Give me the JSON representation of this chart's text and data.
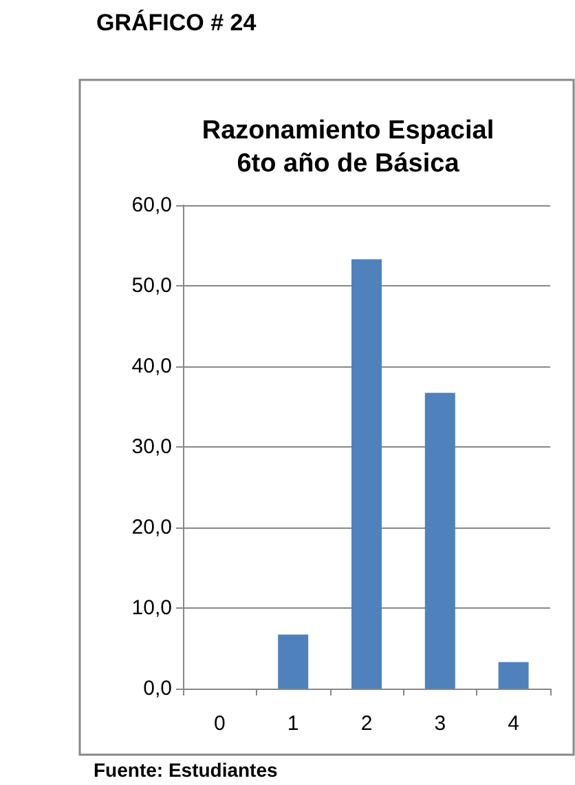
{
  "chart_data": {
    "type": "bar",
    "title": "Razonamiento Espacial\n6to año de Básica",
    "categories": [
      "0",
      "1",
      "2",
      "3",
      "4"
    ],
    "values": [
      0,
      6.7,
      53.3,
      36.7,
      3.3
    ],
    "color": "#4f81bd",
    "ylim": [
      0,
      60
    ],
    "yticks": [
      {
        "value": 0,
        "label": "0,0"
      },
      {
        "value": 10,
        "label": "10,0"
      },
      {
        "value": 20,
        "label": "20,0"
      },
      {
        "value": 30,
        "label": "30,0"
      },
      {
        "value": 40,
        "label": "40,0"
      },
      {
        "value": 50,
        "label": "50,0"
      },
      {
        "value": 60,
        "label": "60,0"
      }
    ],
    "grid": "y",
    "annotations": [
      "GRÁFICO # 24",
      "Fuente: Estudiantes"
    ]
  }
}
